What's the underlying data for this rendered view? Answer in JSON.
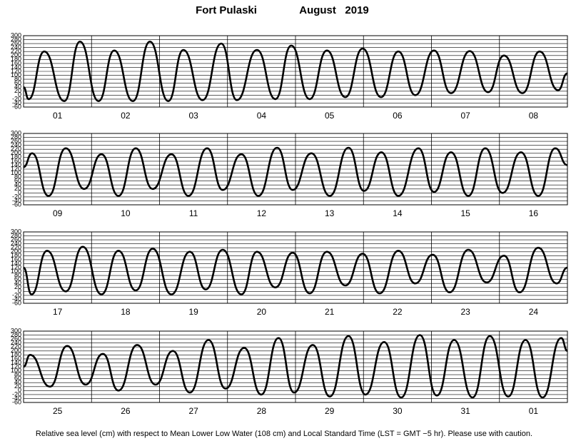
{
  "header": {
    "station": "Fort Pulaski",
    "period": "August   2019"
  },
  "footer": "Relative sea level (cm) with respect to Mean Lower Low Water (108 cm) and Local Standard Time (LST = GMT −5 hr). Please use with caution.",
  "chart_data": [
    {
      "type": "line",
      "categories": [
        "01",
        "02",
        "03",
        "04",
        "05",
        "06",
        "07",
        "08"
      ],
      "xlim": [
        0,
        192
      ],
      "ylim": [
        -60,
        300
      ],
      "yticks": [
        -60,
        -40,
        -20,
        0,
        20,
        40,
        60,
        80,
        100,
        120,
        140,
        160,
        180,
        200,
        220,
        240,
        260,
        280,
        300
      ],
      "grid": true,
      "color": "#000000",
      "x": [
        0,
        1.8,
        7.3,
        14.4,
        19.9,
        26.5,
        32,
        38.6,
        44.6,
        51.1,
        56.4,
        63.2,
        69.8,
        75.3,
        82.4,
        88.9,
        94.5,
        101,
        107.1,
        113.6,
        119.7,
        126.2,
        132.3,
        138.3,
        144.9,
        150.9,
        157.5,
        164,
        169.6,
        176.1,
        182.2,
        188.7,
        192
      ],
      "values": [
        40,
        -20,
        220,
        -30,
        270,
        -30,
        225,
        -30,
        270,
        -30,
        228,
        -25,
        260,
        -25,
        228,
        -20,
        250,
        -20,
        225,
        -10,
        235,
        -10,
        220,
        0,
        225,
        10,
        222,
        15,
        200,
        10,
        220,
        25,
        110
      ]
    },
    {
      "type": "line",
      "categories": [
        "09",
        "10",
        "11",
        "12",
        "13",
        "14",
        "15",
        "16"
      ],
      "xlim": [
        0,
        192
      ],
      "ylim": [
        -60,
        300
      ],
      "yticks": [
        -60,
        -40,
        -20,
        0,
        20,
        40,
        60,
        80,
        100,
        120,
        140,
        160,
        180,
        200,
        220,
        240,
        260,
        280,
        300
      ],
      "grid": true,
      "color": "#000000",
      "x": [
        0,
        3,
        8.8,
        14.9,
        21.4,
        27.5,
        33.5,
        39.6,
        45.6,
        52.2,
        58.2,
        64.8,
        70.3,
        76.9,
        82.9,
        89.5,
        95,
        101.6,
        108.1,
        114.7,
        120.2,
        126.3,
        132.3,
        139.4,
        144.9,
        150.9,
        157,
        163,
        169.1,
        175.6,
        181.7,
        187.7,
        192
      ],
      "values": [
        130,
        200,
        -15,
        225,
        20,
        195,
        -15,
        225,
        20,
        195,
        -15,
        225,
        15,
        195,
        -15,
        228,
        15,
        200,
        -15,
        228,
        10,
        205,
        -15,
        225,
        5,
        205,
        -15,
        225,
        0,
        205,
        -15,
        225,
        140
      ]
    },
    {
      "type": "line",
      "categories": [
        "17",
        "18",
        "19",
        "20",
        "21",
        "22",
        "23",
        "24"
      ],
      "xlim": [
        0,
        192
      ],
      "ylim": [
        -60,
        300
      ],
      "yticks": [
        -60,
        -40,
        -20,
        0,
        20,
        40,
        60,
        80,
        100,
        120,
        140,
        160,
        180,
        200,
        220,
        240,
        260,
        280,
        300
      ],
      "grid": true,
      "color": "#000000",
      "x": [
        0,
        2.8,
        8.3,
        14.9,
        20.9,
        27.5,
        33.5,
        39.6,
        45.6,
        52.2,
        58.7,
        64.3,
        70.3,
        76.9,
        82.4,
        88.9,
        95,
        101,
        107.1,
        113.6,
        119.7,
        125.7,
        132.3,
        138.3,
        144.4,
        150.4,
        157,
        163.5,
        169.6,
        175.1,
        181.7,
        188.2,
        192
      ],
      "values": [
        120,
        -15,
        205,
        0,
        225,
        -15,
        205,
        5,
        215,
        -15,
        200,
        10,
        210,
        -15,
        200,
        20,
        195,
        -10,
        200,
        30,
        190,
        -10,
        205,
        40,
        185,
        -5,
        210,
        45,
        180,
        -5,
        220,
        40,
        120
      ]
    },
    {
      "type": "line",
      "categories": [
        "25",
        "26",
        "27",
        "28",
        "29",
        "30",
        "31",
        "01"
      ],
      "xlim": [
        0,
        192
      ],
      "ylim": [
        -60,
        300
      ],
      "yticks": [
        -60,
        -40,
        -20,
        0,
        20,
        40,
        60,
        80,
        100,
        120,
        140,
        160,
        180,
        200,
        220,
        240,
        260,
        280,
        300
      ],
      "grid": true,
      "color": "#000000",
      "x": [
        0,
        2.3,
        9.3,
        15.4,
        21.9,
        28,
        33.5,
        40.1,
        46.6,
        52.7,
        58.7,
        65.3,
        71.3,
        77.9,
        83.9,
        90,
        95.5,
        102.1,
        108.1,
        114.7,
        120.7,
        127.3,
        133.3,
        139.9,
        145.9,
        152,
        158.5,
        164.6,
        171.1,
        177.2,
        183.2,
        189.8,
        192
      ],
      "values": [
        120,
        180,
        20,
        225,
        30,
        185,
        0,
        230,
        30,
        200,
        -10,
        255,
        10,
        215,
        -20,
        265,
        -10,
        230,
        -30,
        275,
        -20,
        245,
        -35,
        280,
        -25,
        255,
        -35,
        275,
        -30,
        255,
        -35,
        265,
        200
      ]
    }
  ]
}
